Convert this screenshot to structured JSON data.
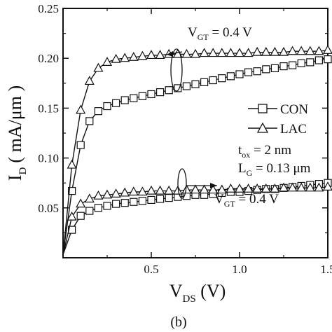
{
  "panel_label": "(b)",
  "chart_data": {
    "type": "line",
    "title": "",
    "xlabel": {
      "main": "V",
      "sub": "DS",
      "unit": " (V)"
    },
    "ylabel": {
      "main": "I",
      "sub": "D",
      "unit": "( mA/μm )"
    },
    "xlim": [
      0,
      1.5
    ],
    "ylim": [
      0,
      0.25
    ],
    "x_ticks": [
      {
        "value": 0.5,
        "label": "0.5"
      },
      {
        "value": 1.0,
        "label": "1.0"
      },
      {
        "value": 1.5,
        "label": "1.5"
      }
    ],
    "y_ticks": [
      {
        "value": 0.05,
        "label": "0.05"
      },
      {
        "value": 0.1,
        "label": "0.10"
      },
      {
        "value": 0.15,
        "label": "0.15"
      },
      {
        "value": 0.2,
        "label": "0.20"
      },
      {
        "value": 0.25,
        "label": "0.25"
      }
    ],
    "grid": false,
    "legend": {
      "placement": "right",
      "entries": [
        {
          "label": "CON",
          "marker": "square"
        },
        {
          "label": "LAC",
          "marker": "triangle"
        }
      ]
    },
    "annotations": {
      "upper_vgt": {
        "main": "V",
        "sub": "GT",
        "rest": " = 0.4 V"
      },
      "lower_vgt": {
        "main": "V",
        "sub": "GT",
        "rest": " = 0.4 V"
      },
      "tox": {
        "main": "t",
        "sub": "ox",
        "rest": " = 2 nm"
      },
      "lg": {
        "main": "L",
        "sub": "G",
        "rest": " = 0.13 μm"
      }
    },
    "x": [
      0.0,
      0.05,
      0.1,
      0.15,
      0.2,
      0.25,
      0.3,
      0.35,
      0.4,
      0.45,
      0.5,
      0.55,
      0.6,
      0.65,
      0.7,
      0.75,
      0.8,
      0.85,
      0.9,
      0.95,
      1.0,
      1.05,
      1.1,
      1.15,
      1.2,
      1.25,
      1.3,
      1.35,
      1.4,
      1.45,
      1.5
    ],
    "series": [
      {
        "name": "CON",
        "marker": "square",
        "group": "upper",
        "values": [
          0.003,
          0.067,
          0.113,
          0.137,
          0.147,
          0.152,
          0.155,
          0.158,
          0.16,
          0.162,
          0.164,
          0.166,
          0.168,
          0.17,
          0.172,
          0.174,
          0.176,
          0.178,
          0.18,
          0.182,
          0.184,
          0.186,
          0.187,
          0.189,
          0.19,
          0.192,
          0.193,
          0.195,
          0.196,
          0.198,
          0.199
        ]
      },
      {
        "name": "LAC",
        "marker": "triangle",
        "group": "upper",
        "values": [
          0.003,
          0.093,
          0.148,
          0.177,
          0.19,
          0.196,
          0.199,
          0.2,
          0.201,
          0.202,
          0.203,
          0.203,
          0.204,
          0.204,
          0.204,
          0.204,
          0.205,
          0.205,
          0.205,
          0.205,
          0.205,
          0.205,
          0.206,
          0.206,
          0.206,
          0.206,
          0.207,
          0.207,
          0.207,
          0.207,
          0.208
        ]
      },
      {
        "name": "CON",
        "marker": "square",
        "group": "lower",
        "values": [
          0.003,
          0.028,
          0.042,
          0.047,
          0.05,
          0.052,
          0.054,
          0.055,
          0.056,
          0.057,
          0.058,
          0.059,
          0.06,
          0.061,
          0.062,
          0.063,
          0.063,
          0.064,
          0.065,
          0.066,
          0.066,
          0.067,
          0.068,
          0.069,
          0.069,
          0.07,
          0.071,
          0.072,
          0.073,
          0.074,
          0.075
        ]
      },
      {
        "name": "LAC",
        "marker": "triangle",
        "group": "lower",
        "values": [
          0.003,
          0.041,
          0.054,
          0.059,
          0.062,
          0.063,
          0.064,
          0.065,
          0.066,
          0.066,
          0.067,
          0.067,
          0.067,
          0.067,
          0.068,
          0.068,
          0.068,
          0.068,
          0.068,
          0.069,
          0.069,
          0.069,
          0.069,
          0.069,
          0.069,
          0.07,
          0.07,
          0.07,
          0.07,
          0.07,
          0.071
        ]
      }
    ]
  }
}
